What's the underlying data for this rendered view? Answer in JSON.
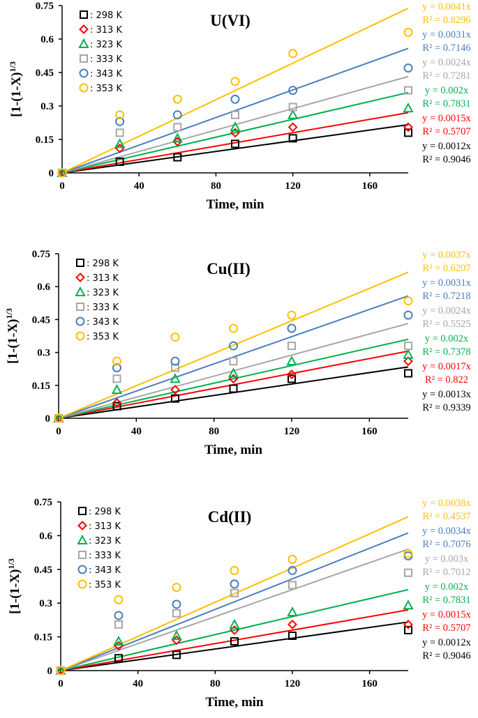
{
  "chart_data": [
    {
      "type": "scatter",
      "title": "U(VI)",
      "xlabel": "Time, min",
      "ylabel": "[1-(1-X)",
      "ylabel_sup": "1/3",
      "xlim": [
        0,
        180
      ],
      "ylim": [
        0,
        0.75
      ],
      "xticks": [
        "0",
        "40",
        "80",
        "120",
        "160"
      ],
      "yticks": [
        "0",
        "0.15",
        "0.3",
        "0.45",
        "0.6",
        "0.75"
      ],
      "x": [
        0,
        30,
        60,
        90,
        120,
        180
      ],
      "series": [
        {
          "name": ": 298 K",
          "color": "#000000",
          "marker": "square",
          "slope": 0.0012,
          "values": [
            0,
            0.05,
            0.07,
            0.13,
            0.155,
            0.18
          ],
          "eq": "y = 0.0012x",
          "r2": "R² = 0.9046"
        },
        {
          "name": ": 313 K",
          "color": "#ff0000",
          "marker": "diamond",
          "slope": 0.0015,
          "values": [
            0,
            0.11,
            0.14,
            0.18,
            0.205,
            0.205
          ],
          "eq": "y = 0.0015x",
          "r2": "R² = 0.5707"
        },
        {
          "name": ": 323 K",
          "color": "#00b050",
          "marker": "triangle",
          "slope": 0.002,
          "values": [
            0,
            0.13,
            0.155,
            0.205,
            0.26,
            0.29
          ],
          "eq": "y = 0.002x",
          "r2": "R² = 0.7831"
        },
        {
          "name": ": 333 K",
          "color": "#a6a6a6",
          "marker": "square",
          "slope": 0.0024,
          "values": [
            0,
            0.18,
            0.205,
            0.26,
            0.295,
            0.37
          ],
          "eq": "y = 0.0024x",
          "r2": "R² = 0.7281"
        },
        {
          "name": ": 343 K",
          "color": "#4a7ebb",
          "marker": "circle",
          "slope": 0.0031,
          "values": [
            0,
            0.23,
            0.26,
            0.33,
            0.37,
            0.47
          ],
          "eq": "y = 0.0031x",
          "r2": "R² = 0.7146"
        },
        {
          "name": ": 353 K",
          "color": "#ffc000",
          "marker": "circle",
          "slope": 0.0041,
          "values": [
            0,
            0.26,
            0.33,
            0.41,
            0.535,
            0.63
          ],
          "eq": "y = 0.0041x",
          "r2": "R² = 0.8296"
        }
      ]
    },
    {
      "type": "scatter",
      "title": "Cu(II)",
      "xlabel": "Time, min",
      "ylabel": "[1-(1-X)",
      "ylabel_sup": "1/3",
      "xlim": [
        0,
        180
      ],
      "ylim": [
        0,
        0.75
      ],
      "xticks": [
        "0",
        "40",
        "80",
        "120",
        "160"
      ],
      "yticks": [
        "0",
        "0.15",
        "0.3",
        "0.45",
        "0.6",
        "0.75"
      ],
      "x": [
        0,
        30,
        60,
        90,
        120,
        180
      ],
      "series": [
        {
          "name": ": 298 K",
          "color": "#000000",
          "marker": "square",
          "slope": 0.0013,
          "values": [
            0,
            0.055,
            0.09,
            0.135,
            0.18,
            0.205
          ],
          "eq": "y = 0.0013x",
          "r2": "R² = 0.9339"
        },
        {
          "name": ": 313 K",
          "color": "#ff0000",
          "marker": "diamond",
          "slope": 0.0017,
          "values": [
            0,
            0.07,
            0.13,
            0.18,
            0.2,
            0.26
          ],
          "eq": "y = 0.0017x",
          "r2": "R² = 0.822"
        },
        {
          "name": ": 323 K",
          "color": "#00b050",
          "marker": "triangle",
          "slope": 0.002,
          "values": [
            0,
            0.13,
            0.18,
            0.205,
            0.26,
            0.29
          ],
          "eq": "y = 0.002x",
          "r2": "R² = 0.7378"
        },
        {
          "name": ": 333 K",
          "color": "#a6a6a6",
          "marker": "square",
          "slope": 0.0024,
          "values": [
            0,
            0.18,
            0.23,
            0.26,
            0.33,
            0.33
          ],
          "eq": "y = 0.0024x",
          "r2": "R² = 0.5525"
        },
        {
          "name": ": 343 K",
          "color": "#4a7ebb",
          "marker": "circle",
          "slope": 0.0031,
          "values": [
            0,
            0.23,
            0.26,
            0.33,
            0.41,
            0.47
          ],
          "eq": "y = 0.0031x",
          "r2": "R² = 0.7218"
        },
        {
          "name": ": 353 K",
          "color": "#ffc000",
          "marker": "circle",
          "slope": 0.0037,
          "values": [
            0,
            0.26,
            0.37,
            0.41,
            0.47,
            0.535
          ],
          "eq": "y = 0.0037x",
          "r2": "R² = 0.6207"
        }
      ]
    },
    {
      "type": "scatter",
      "title": "Cd(II)",
      "xlabel": "Time, min",
      "ylabel": "[1-(1-X)",
      "ylabel_sup": "1/3",
      "xlim": [
        0,
        180
      ],
      "ylim": [
        0,
        0.75
      ],
      "xticks": [
        "0",
        "40",
        "80",
        "120",
        "160"
      ],
      "yticks": [
        "0",
        "0.15",
        "0.3",
        "0.45",
        "0.6",
        "0.75"
      ],
      "x": [
        0,
        30,
        60,
        90,
        120,
        180
      ],
      "series": [
        {
          "name": ": 298 K",
          "color": "#000000",
          "marker": "square",
          "slope": 0.0012,
          "values": [
            0,
            0.055,
            0.07,
            0.13,
            0.155,
            0.18
          ],
          "eq": "y = 0.0012x",
          "r2": "R² = 0.9046"
        },
        {
          "name": ": 313 K",
          "color": "#ff0000",
          "marker": "diamond",
          "slope": 0.0015,
          "values": [
            0,
            0.11,
            0.135,
            0.18,
            0.205,
            0.205
          ],
          "eq": "y = 0.0015x",
          "r2": "R² = 0.5707"
        },
        {
          "name": ": 323 K",
          "color": "#00b050",
          "marker": "triangle",
          "slope": 0.002,
          "values": [
            0,
            0.13,
            0.155,
            0.205,
            0.26,
            0.29
          ],
          "eq": "y = 0.002x",
          "r2": "R² = 0.7831"
        },
        {
          "name": ": 333 K",
          "color": "#a6a6a6",
          "marker": "square",
          "slope": 0.003,
          "values": [
            0,
            0.205,
            0.255,
            0.345,
            0.38,
            0.435
          ],
          "eq": "y = 0.003x",
          "r2": "R² = 0.7012"
        },
        {
          "name": ": 343 K",
          "color": "#4a7ebb",
          "marker": "circle",
          "slope": 0.0034,
          "values": [
            0,
            0.245,
            0.295,
            0.385,
            0.445,
            0.51
          ],
          "eq": "y = 0.0034x",
          "r2": "R² = 0.7076"
        },
        {
          "name": ": 353 K",
          "color": "#ffc000",
          "marker": "circle",
          "slope": 0.0038,
          "values": [
            0,
            0.315,
            0.37,
            0.445,
            0.495,
            0.52
          ],
          "eq": "y = 0.0038x",
          "r2": "R² = 0.4537"
        }
      ]
    }
  ]
}
